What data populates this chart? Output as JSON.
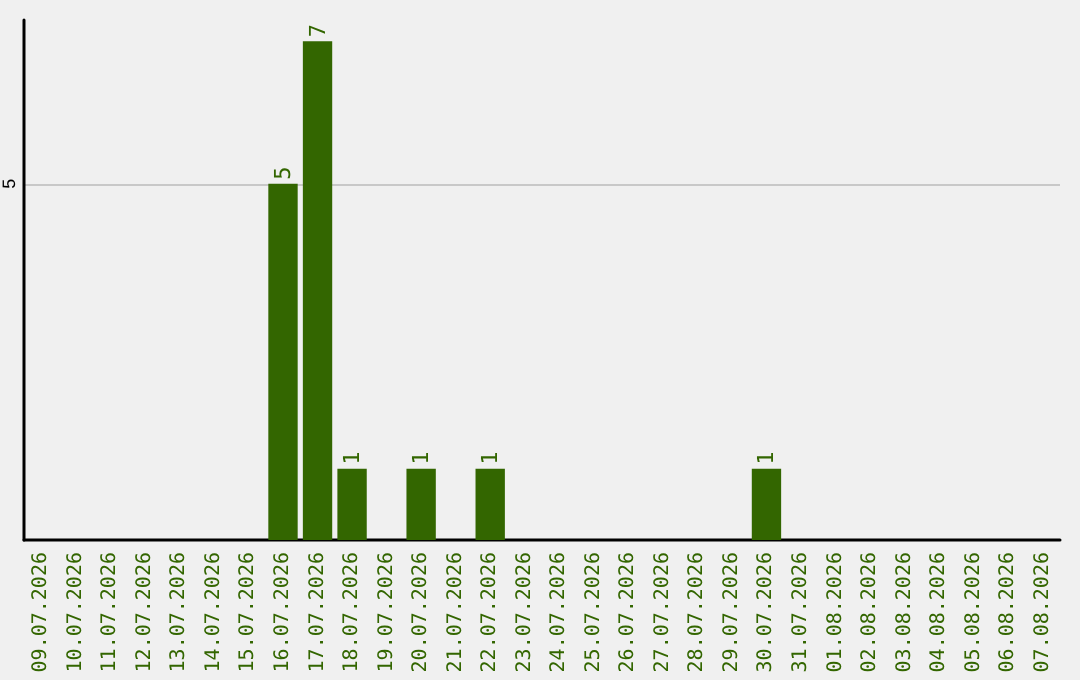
{
  "chart_data": {
    "type": "bar",
    "categories": [
      "09.07.2026",
      "10.07.2026",
      "11.07.2026",
      "12.07.2026",
      "13.07.2026",
      "14.07.2026",
      "15.07.2026",
      "16.07.2026",
      "17.07.2026",
      "18.07.2026",
      "19.07.2026",
      "20.07.2026",
      "21.07.2026",
      "22.07.2026",
      "23.07.2026",
      "24.07.2026",
      "25.07.2026",
      "26.07.2026",
      "27.07.2026",
      "28.07.2026",
      "29.07.2026",
      "30.07.2026",
      "31.07.2026",
      "01.08.2026",
      "02.08.2026",
      "03.08.2026",
      "04.08.2026",
      "05.08.2026",
      "06.08.2026",
      "07.08.2026"
    ],
    "values": [
      0,
      0,
      0,
      0,
      0,
      0,
      0,
      5,
      7,
      1,
      0,
      1,
      0,
      1,
      0,
      0,
      0,
      0,
      0,
      0,
      0,
      1,
      0,
      0,
      0,
      0,
      0,
      0,
      0,
      0
    ],
    "value_labels": [
      null,
      null,
      null,
      null,
      null,
      null,
      null,
      "5",
      "7",
      "1",
      null,
      "1",
      null,
      "1",
      null,
      null,
      null,
      null,
      null,
      null,
      null,
      "1",
      null,
      null,
      null,
      null,
      null,
      null,
      null,
      null
    ],
    "color": "#336600",
    "ylim": [
      0,
      7.3
    ],
    "yticks": [
      5
    ],
    "grid": "y"
  }
}
